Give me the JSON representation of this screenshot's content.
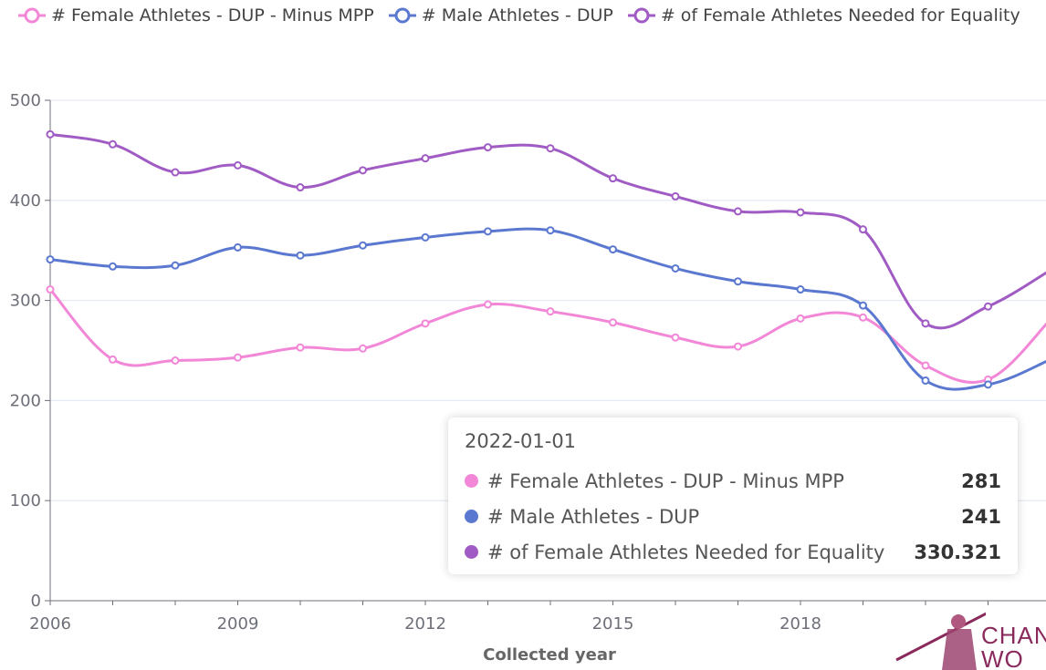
{
  "legend": [
    {
      "name": "# Female Athletes - DUP - Minus MPP",
      "color": "#f387d7"
    },
    {
      "name": "# Male Athletes - DUP",
      "color": "#5b78d0"
    },
    {
      "name": "# of Female Athletes Needed for Equality",
      "color": "#a05bc4"
    }
  ],
  "tooltip": {
    "title": "2022-01-01",
    "rows": [
      {
        "name": "# Female Athletes - DUP - Minus MPP",
        "value": "281",
        "color": "#f387d7"
      },
      {
        "name": "# Male Athletes - DUP",
        "value": "241",
        "color": "#5b78d0"
      },
      {
        "name": "# of Female Athletes Needed for Equality",
        "value": "330.321",
        "color": "#a05bc4"
      }
    ]
  },
  "logo": {
    "text_line1": "CHAN",
    "text_line2": "WO",
    "color": "#8a2a5c"
  },
  "chart_data": {
    "type": "line",
    "title": "",
    "xlabel": "Collected year",
    "ylabel": "",
    "x": [
      2006,
      2007,
      2008,
      2009,
      2010,
      2011,
      2012,
      2013,
      2014,
      2015,
      2016,
      2017,
      2018,
      2019,
      2020,
      2021,
      2022
    ],
    "xticks": [
      2006,
      2009,
      2012,
      2015,
      2018
    ],
    "yticks": [
      0,
      100,
      200,
      300,
      400,
      500
    ],
    "ylim": [
      0,
      500
    ],
    "grid": true,
    "legend_position": "top",
    "series": [
      {
        "name": "# Female Athletes - DUP - Minus MPP",
        "color": "#f387d7",
        "values": [
          311,
          241,
          240,
          243,
          253,
          252,
          277,
          296,
          289,
          278,
          263,
          254,
          282,
          283,
          235,
          221,
          281
        ]
      },
      {
        "name": "# Male Athletes - DUP",
        "color": "#5b78d0",
        "values": [
          341,
          334,
          335,
          353,
          345,
          355,
          363,
          369,
          370,
          351,
          332,
          319,
          311,
          295,
          220,
          216,
          241
        ]
      },
      {
        "name": "# of Female Athletes Needed for Equality",
        "color": "#a05bc4",
        "values": [
          466,
          456,
          428,
          435,
          413,
          430,
          442,
          453,
          452,
          422,
          404,
          389,
          388,
          371,
          277,
          294,
          330.321
        ]
      }
    ]
  }
}
